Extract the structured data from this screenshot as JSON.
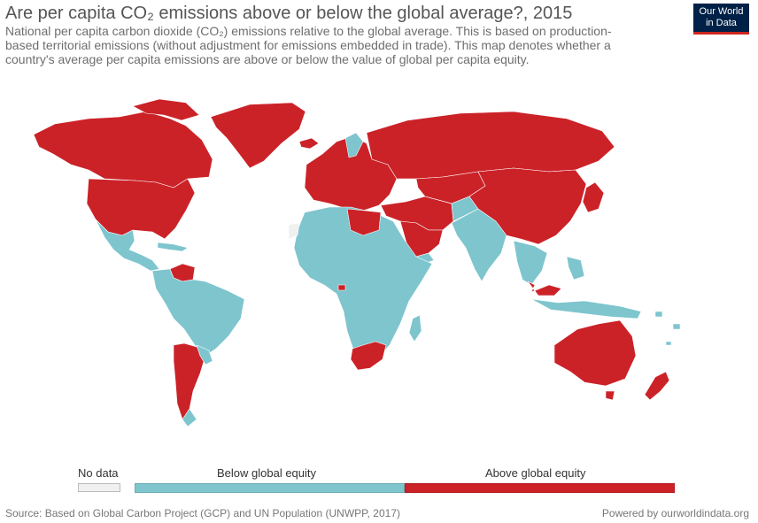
{
  "header": {
    "title": "Are per capita CO₂ emissions above or below the global average?, 2015",
    "subtitle": "National per capita carbon dioxide (CO₂) emissions relative to the global average. This is based on production-based territorial emissions (without adjustment for emissions embedded in trade). This map denotes whether a country's average per capita emissions are above or below the value of global per capita equity."
  },
  "logo": {
    "line1": "Our World",
    "line2": "in Data"
  },
  "legend": {
    "no_data_label": "No data",
    "bins": [
      {
        "label": "Below global equity",
        "color": "#7ec5ce"
      },
      {
        "label": "Above global equity",
        "color": "#cb2228"
      }
    ],
    "no_data_color": "#f0f0f0"
  },
  "footer": {
    "source": "Source: Based on Global Carbon Project (GCP) and UN Population (UNWPP, 2017)",
    "credit": "Powered by ourworldindata.org"
  }
}
